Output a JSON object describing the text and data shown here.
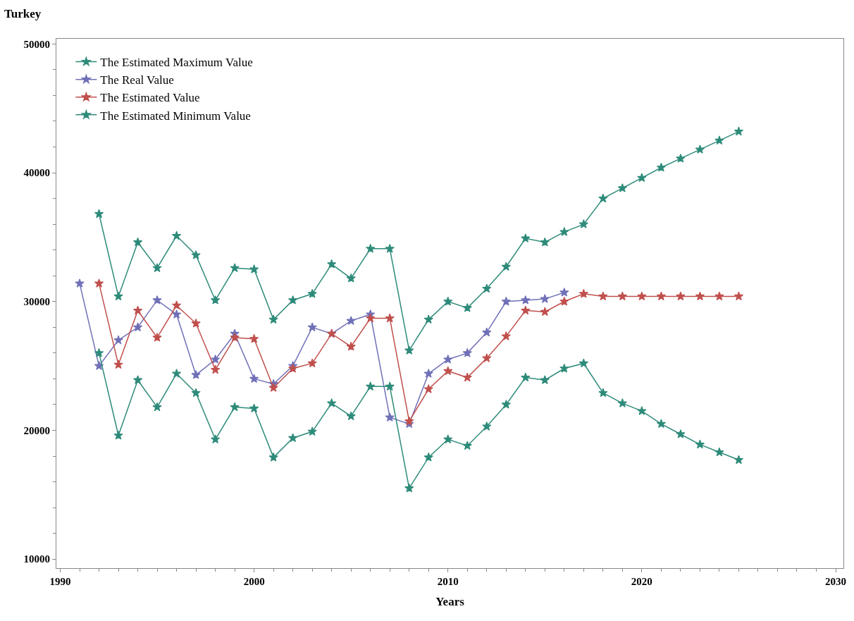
{
  "chart_data": {
    "type": "line",
    "title": "Turkey",
    "xlabel": "Years",
    "xlim": [
      1989.8,
      2030.4
    ],
    "xticks": [
      1990,
      2000,
      2010,
      2020,
      2030
    ],
    "ylim": [
      9300,
      50400
    ],
    "yticks": [
      10000,
      20000,
      30000,
      40000,
      50000
    ],
    "legend": "top left",
    "marker": "star",
    "line_style": "solid",
    "series": [
      {
        "name": "The Estimated Maximum Value",
        "color": "#2e8b7a",
        "x": [
          1992,
          1993,
          1994,
          1995,
          1996,
          1997,
          1998,
          1999,
          2000,
          2001,
          2002,
          2003,
          2004,
          2005,
          2006,
          2007,
          2008,
          2009,
          2010,
          2011,
          2012,
          2013,
          2014,
          2015,
          2016,
          2017,
          2018,
          2019,
          2020,
          2021,
          2022,
          2023,
          2024,
          2025
        ],
        "values": [
          36800,
          30400,
          34600,
          32600,
          35100,
          33600,
          30100,
          32600,
          32500,
          28600,
          30100,
          30600,
          32900,
          31800,
          34100,
          34100,
          26200,
          28600,
          30000,
          29500,
          31000,
          32700,
          34900,
          34600,
          35400,
          36000,
          38000,
          38800,
          39600,
          40400,
          41100,
          41800,
          42500,
          43200
        ]
      },
      {
        "name": "The Real Value",
        "color": "#7070b8",
        "x": [
          1991,
          1992,
          1993,
          1994,
          1995,
          1996,
          1997,
          1998,
          1999,
          2000,
          2001,
          2002,
          2003,
          2004,
          2005,
          2006,
          2007,
          2008,
          2009,
          2010,
          2011,
          2012,
          2013,
          2014,
          2015,
          2016
        ],
        "values": [
          31400,
          25000,
          27000,
          28000,
          30100,
          29000,
          24300,
          25500,
          27500,
          24000,
          23600,
          25000,
          28000,
          27500,
          28500,
          29000,
          21000,
          20500,
          24400,
          25500,
          26000,
          27600,
          30000,
          30100,
          30200,
          30700
        ]
      },
      {
        "name": "The Estimated Value",
        "color": "#c0504d",
        "x": [
          1992,
          1993,
          1994,
          1995,
          1996,
          1997,
          1998,
          1999,
          2000,
          2001,
          2002,
          2003,
          2004,
          2005,
          2006,
          2007,
          2008,
          2009,
          2010,
          2011,
          2012,
          2013,
          2014,
          2015,
          2016,
          2017,
          2018,
          2019,
          2020,
          2021,
          2022,
          2023,
          2024,
          2025
        ],
        "values": [
          31400,
          25100,
          29300,
          27200,
          29700,
          28300,
          24700,
          27200,
          27100,
          23300,
          24800,
          25200,
          27500,
          26500,
          28700,
          28700,
          20700,
          23200,
          24600,
          24100,
          25600,
          27300,
          29300,
          29200,
          30000,
          30600,
          30400,
          30400,
          30400,
          30400,
          30400,
          30400,
          30400,
          30400
        ]
      },
      {
        "name": "The Estimated Minimum Value",
        "color": "#2e8b7a",
        "x": [
          1992,
          1993,
          1994,
          1995,
          1996,
          1997,
          1998,
          1999,
          2000,
          2001,
          2002,
          2003,
          2004,
          2005,
          2006,
          2007,
          2008,
          2009,
          2010,
          2011,
          2012,
          2013,
          2014,
          2015,
          2016,
          2017,
          2018,
          2019,
          2020,
          2021,
          2022,
          2023,
          2024,
          2025
        ],
        "values": [
          26000,
          19600,
          23900,
          21800,
          24400,
          22900,
          19300,
          21800,
          21700,
          17900,
          19400,
          19900,
          22100,
          21100,
          23400,
          23400,
          15500,
          17900,
          19300,
          18800,
          20300,
          22000,
          24100,
          23900,
          24800,
          25200,
          22900,
          22100,
          21500,
          20500,
          19700,
          18900,
          18300,
          17700
        ]
      }
    ]
  }
}
